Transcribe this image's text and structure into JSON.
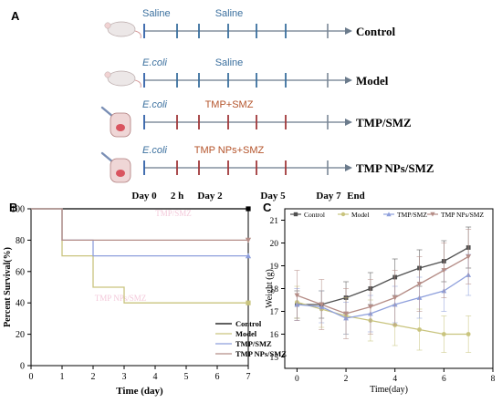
{
  "panel_a": {
    "letter": "A",
    "rows": [
      {
        "group": "Control",
        "first_treatment": "Saline",
        "first_italic": false,
        "regimen": "Saline",
        "regimen_color": "#3a6f9e",
        "tick_color": "#3a6f9e",
        "subject": "mouse"
      },
      {
        "group": "Model",
        "first_treatment": "E.coli",
        "first_italic": true,
        "regimen": "Saline",
        "regimen_color": "#3a6f9e",
        "tick_color": "#3a6f9e",
        "subject": "mouse"
      },
      {
        "group": "TMP/SMZ",
        "first_treatment": "E.coli",
        "first_italic": true,
        "regimen": "TMP+SMZ",
        "regimen_color": "#b4532a",
        "tick_color": "#a1383a",
        "subject": "syringe-mouse"
      },
      {
        "group": "TMP NPs/SMZ",
        "first_treatment": "E.coli",
        "first_italic": true,
        "regimen": "TMP NPs+SMZ",
        "regimen_color": "#b4532a",
        "tick_color": "#a1383a",
        "subject": "syringe-mouse"
      }
    ],
    "timeline_labels": [
      "Day 0",
      "2 h",
      "Day 2",
      "Day 5",
      "Day 7",
      "End"
    ],
    "colors": {
      "axis": "#6b7b8c",
      "first_tick": "#2f5fa8",
      "end_tick": "#7a8796",
      "text_blue": "#3a6f9e"
    }
  },
  "chart_data": [
    {
      "panel": "B",
      "type": "line",
      "step": true,
      "title": "",
      "xlabel": "Time (day)",
      "ylabel": "Percent Survival(%)",
      "xlim": [
        0,
        7
      ],
      "ylim": [
        0,
        100
      ],
      "xticks": [
        0,
        1,
        2,
        3,
        4,
        5,
        6,
        7
      ],
      "yticks": [
        0,
        20,
        40,
        60,
        80,
        100
      ],
      "legend_position": "lower-right",
      "faint_overlay_labels": [
        "TMP/SMZ",
        "TMP NPs/SMZ"
      ],
      "series": [
        {
          "name": "Control",
          "color": "#000000",
          "marker": "square",
          "x": [
            0,
            7
          ],
          "y": [
            100,
            100
          ]
        },
        {
          "name": "Model",
          "color": "#c9c47e",
          "marker": "square",
          "x": [
            0,
            1,
            2,
            3,
            7
          ],
          "y": [
            100,
            70,
            50,
            40,
            40
          ]
        },
        {
          "name": "TMP/SMZ",
          "color": "#8e9fdc",
          "marker": "triangle",
          "x": [
            0,
            1,
            2,
            7
          ],
          "y": [
            100,
            80,
            70,
            70
          ]
        },
        {
          "name": "TMP NPs/SMZ",
          "color": "#b58d87",
          "marker": "triangle-down",
          "x": [
            0,
            1,
            7
          ],
          "y": [
            100,
            80,
            80
          ]
        }
      ]
    },
    {
      "panel": "C",
      "type": "line",
      "title": "",
      "xlabel": "Time(day)",
      "ylabel": "Weight (g)",
      "xlim": [
        -0.5,
        8
      ],
      "ylim": [
        14.5,
        21.5
      ],
      "xticks": [
        0,
        2,
        4,
        6,
        8
      ],
      "yticks": [
        15,
        16,
        17,
        18,
        19,
        20,
        21
      ],
      "legend_position": "top",
      "series": [
        {
          "name": "Control",
          "color": "#505050",
          "marker": "square",
          "x": [
            0,
            1,
            2,
            3,
            4,
            5,
            6,
            7
          ],
          "y": [
            17.3,
            17.3,
            17.6,
            18.0,
            18.5,
            18.9,
            19.2,
            19.8
          ],
          "err": [
            0.6,
            0.6,
            0.7,
            0.7,
            0.8,
            0.8,
            0.9,
            0.9
          ]
        },
        {
          "name": "Model",
          "color": "#c9c47e",
          "marker": "circle",
          "x": [
            0,
            1,
            2,
            3,
            4,
            5,
            6,
            7
          ],
          "y": [
            17.4,
            17.1,
            16.8,
            16.6,
            16.4,
            16.2,
            16.0,
            16.0
          ],
          "err": [
            0.7,
            0.8,
            0.8,
            0.9,
            0.9,
            0.9,
            0.8,
            0.8
          ]
        },
        {
          "name": "TMP/SMZ",
          "color": "#8e9fdc",
          "marker": "triangle",
          "x": [
            0,
            1,
            2,
            3,
            4,
            5,
            6,
            7
          ],
          "y": [
            17.3,
            17.2,
            16.7,
            16.9,
            17.3,
            17.6,
            17.9,
            18.6
          ],
          "err": [
            0.7,
            0.7,
            0.7,
            0.8,
            0.8,
            0.9,
            0.9,
            0.9
          ]
        },
        {
          "name": "TMP NPs/SMZ",
          "color": "#b58d87",
          "marker": "triangle-down",
          "x": [
            0,
            1,
            2,
            3,
            4,
            5,
            6,
            7
          ],
          "y": [
            17.7,
            17.3,
            16.9,
            17.2,
            17.6,
            18.2,
            18.8,
            19.4
          ],
          "err": [
            1.1,
            1.1,
            1.1,
            1.2,
            1.2,
            1.2,
            1.2,
            1.2
          ]
        }
      ]
    }
  ]
}
